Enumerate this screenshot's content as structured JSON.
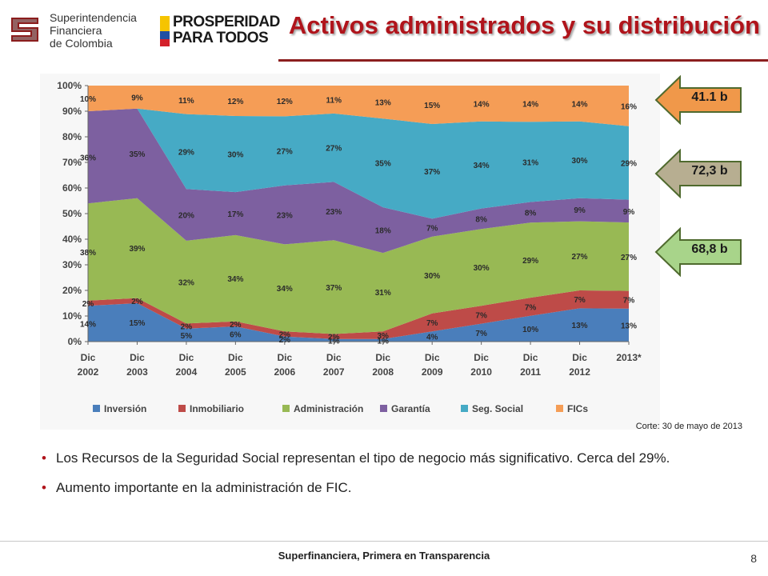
{
  "header": {
    "org_lines": [
      "Superintendencia",
      "Financiera",
      "de Colombia"
    ],
    "campaign_lines": [
      "PROSPERIDAD",
      "PARA TODOS"
    ],
    "title": "Activos administrados y su distribución"
  },
  "callouts": [
    {
      "label": "41.1 b",
      "color": "#f0984a"
    },
    {
      "label": "72,3 b",
      "color": "#b7ae91"
    },
    {
      "label": "68,8 b",
      "color": "#a8d48a"
    }
  ],
  "note": "Corte: 30 de mayo de 2013",
  "bullets": [
    "Los Recursos de la Seguridad Social representan el tipo de negocio más significativo. Cerca del 29%.",
    "Aumento importante en la administración de FIC."
  ],
  "footer": {
    "tagline": "Superfinanciera, Primera en Transparencia",
    "page": "8"
  },
  "chart_data": {
    "type": "area",
    "stacked": true,
    "percent": true,
    "x": [
      "Dic 2002",
      "Dic 2003",
      "Dic 2004",
      "Dic 2005",
      "Dic 2006",
      "Dic 2007",
      "Dic 2008",
      "Dic 2009",
      "Dic 2010",
      "Dic 2011",
      "Dic 2012",
      "2013*"
    ],
    "x_label_lines": [
      [
        "Dic",
        "2002"
      ],
      [
        "Dic",
        "2003"
      ],
      [
        "Dic",
        "2004"
      ],
      [
        "Dic",
        "2005"
      ],
      [
        "Dic",
        "2006"
      ],
      [
        "Dic",
        "2007"
      ],
      [
        "Dic",
        "2008"
      ],
      [
        "Dic",
        "2009"
      ],
      [
        "Dic",
        "2010"
      ],
      [
        "Dic",
        "2011"
      ],
      [
        "Dic",
        "2012"
      ],
      [
        "2013*",
        ""
      ]
    ],
    "ylim": [
      0,
      100
    ],
    "yticks": [
      "0%",
      "10%",
      "20%",
      "30%",
      "40%",
      "50%",
      "60%",
      "70%",
      "80%",
      "90%",
      "100%"
    ],
    "legend_position": "bottom",
    "series": [
      {
        "name": "Inversión",
        "color": "#4a7ebb",
        "values": [
          14,
          15,
          5,
          6,
          2,
          1,
          1,
          4,
          7,
          10,
          13,
          13
        ]
      },
      {
        "name": "Inmobiliario",
        "color": "#be4b48",
        "values": [
          2,
          2,
          2,
          2,
          2,
          2,
          3,
          7,
          7,
          7,
          7,
          7
        ]
      },
      {
        "name": "Administración",
        "color": "#98b954",
        "values": [
          38,
          39,
          32,
          34,
          34,
          37,
          31,
          30,
          30,
          29,
          27,
          27
        ]
      },
      {
        "name": "Garantía",
        "color": "#7d60a0",
        "values": [
          36,
          35,
          20,
          17,
          23,
          23,
          18,
          7,
          8,
          8,
          9,
          9
        ]
      },
      {
        "name": "Seg. Social",
        "color": "#46aac5",
        "values": [
          0,
          0,
          29,
          30,
          27,
          27,
          35,
          37,
          34,
          31,
          30,
          29
        ]
      },
      {
        "name": "FICs",
        "color": "#f59d56",
        "values": [
          10,
          9,
          11,
          12,
          12,
          11,
          13,
          15,
          14,
          14,
          14,
          16
        ]
      }
    ],
    "labels": [
      [
        "14%",
        "15%",
        "5%",
        "6%",
        "2%",
        "1%",
        "1%",
        "4%",
        "7%",
        "10%",
        "13%",
        "13%"
      ],
      [
        "2%",
        "2%",
        "2%",
        "2%",
        "2%",
        "2%",
        "3%",
        "7%",
        "7%",
        "7%",
        "7%",
        "7%"
      ],
      [
        "38%",
        "39%",
        "32%",
        "34%",
        "34%",
        "37%",
        "31%",
        "30%",
        "30%",
        "29%",
        "27%",
        "27%"
      ],
      [
        "36%",
        "35%",
        "20%",
        "17%",
        "23%",
        "23%",
        "18%",
        "7%",
        "8%",
        "8%",
        "9%",
        "9%"
      ],
      [
        "",
        "",
        "29%",
        "30%",
        "27%",
        "27%",
        "35%",
        "37%",
        "34%",
        "31%",
        "30%",
        "29%"
      ],
      [
        "10%",
        "9%",
        "11%",
        "12%",
        "12%",
        "11%",
        "13%",
        "15%",
        "14%",
        "14%",
        "14%",
        "16%"
      ]
    ]
  }
}
